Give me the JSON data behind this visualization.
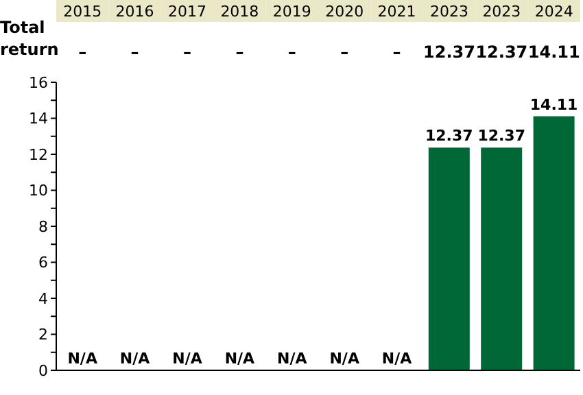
{
  "chart_data": {
    "type": "bar",
    "categories": [
      "2015",
      "2016",
      "2017",
      "2018",
      "2019",
      "2020",
      "2021",
      "2023",
      "2023",
      "2024"
    ],
    "series": [
      {
        "name": "Total return",
        "color": "#006837",
        "values": [
          null,
          null,
          null,
          null,
          null,
          null,
          null,
          12.37,
          12.37,
          14.11
        ],
        "value_labels": [
          "N/A",
          "N/A",
          "N/A",
          "N/A",
          "N/A",
          "N/A",
          "N/A",
          "12.37",
          "12.37",
          "14.11"
        ]
      }
    ],
    "annotations": [
      "–",
      "–",
      "–",
      "–",
      "–",
      "–",
      "–",
      "12.37",
      "12.37",
      "14.11"
    ],
    "ylim": [
      0,
      16
    ],
    "yticks": [
      0,
      {
        "value": 1,
        "label": null
      },
      2,
      {
        "value": 3,
        "label": null
      },
      4,
      {
        "value": 5,
        "label": null
      },
      6,
      {
        "value": 7,
        "label": null
      },
      8,
      {
        "value": 9,
        "label": null
      },
      10,
      {
        "value": 11,
        "label": null
      },
      12,
      {
        "value": 13,
        "label": null
      },
      14,
      {
        "value": 15,
        "label": null
      },
      16
    ],
    "grid": false,
    "legend": false
  }
}
